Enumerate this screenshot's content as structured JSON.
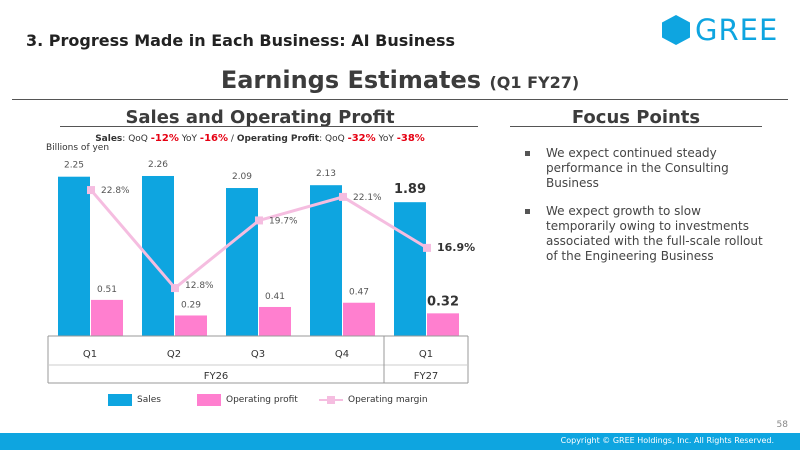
{
  "header": {
    "section_title": "3. Progress Made in Each Business: AI Business",
    "logo_text": "GREE",
    "main_title": "Earnings Estimates",
    "main_title_sub": "(Q1 FY27)"
  },
  "left_panel": {
    "title": "Sales and Operating Profit",
    "change": {
      "sales_label": "Sales",
      "qoq_label": "QoQ",
      "yoy_label": "YoY",
      "sales_qoq": "-12%",
      "sales_yoy": "-16%",
      "separator": "/",
      "op_label": "Operating Profit",
      "op_qoq": "-32%",
      "op_yoy": "-38%"
    },
    "unit": "Billions of yen"
  },
  "right_panel": {
    "title": "Focus Points",
    "bullets": [
      "We expect continued steady performance in the Consulting Business",
      "We expect growth to slow temporarily owing to investments associated with the full-scale rollout of the Engineering Business"
    ]
  },
  "footer": {
    "page_number": "58",
    "copyright": "Copyright © GREE Holdings, Inc. All Rights Reserved."
  },
  "colors": {
    "sales": "#0ea5e0",
    "operating_profit": "#ff7fcf",
    "operating_margin": "#f5bde0",
    "brand": "#0ea5e0",
    "negative": "#e60012"
  },
  "chart_data": {
    "type": "bar",
    "categories": [
      "Q1",
      "Q2",
      "Q3",
      "Q4",
      "Q1"
    ],
    "category_groups": [
      {
        "label": "FY26",
        "categories": [
          "Q1",
          "Q2",
          "Q3",
          "Q4"
        ]
      },
      {
        "label": "FY27",
        "categories": [
          "Q1"
        ]
      }
    ],
    "series": [
      {
        "name": "Sales",
        "type": "bar",
        "values": [
          2.25,
          2.26,
          2.09,
          2.13,
          1.89
        ],
        "labels": [
          "2.25",
          "2.26",
          "2.09",
          "2.13",
          "1.89"
        ]
      },
      {
        "name": "Operating profit",
        "type": "bar",
        "values": [
          0.51,
          0.29,
          0.41,
          0.47,
          0.32
        ],
        "labels": [
          "0.51",
          "0.29",
          "0.41",
          "0.47",
          "0.32"
        ]
      },
      {
        "name": "Operating margin",
        "type": "line",
        "values": [
          22.8,
          12.8,
          19.7,
          22.1,
          16.9
        ],
        "labels": [
          "22.8%",
          "12.8%",
          "19.7%",
          "22.1%",
          "16.9%"
        ]
      }
    ],
    "highlight_last": true,
    "ylabel": "Billions of yen",
    "legend_position": "bottom",
    "grid": false
  }
}
